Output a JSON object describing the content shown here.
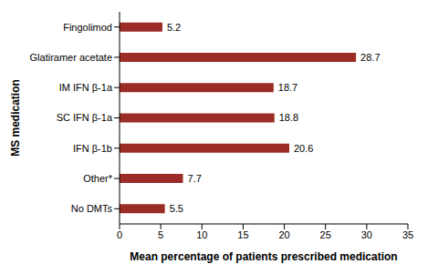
{
  "chart_data": {
    "type": "bar",
    "orientation": "horizontal",
    "x_label": "Mean percentage of patients prescribed medication",
    "y_label": "MS medication",
    "categories": [
      "Fingolimod",
      "Glatiramer acetate",
      "IM IFN β-1a",
      "SC IFN β-1a",
      "IFN β-1b",
      "Other*",
      "No DMTs"
    ],
    "values": [
      5.2,
      28.7,
      18.7,
      18.8,
      20.6,
      7.7,
      5.5
    ],
    "color": "#9b2d26",
    "xlim": [
      0,
      35
    ],
    "xticks": [
      0,
      5,
      10,
      15,
      20,
      25,
      30,
      35
    ],
    "grid": false,
    "data_labels": true
  }
}
